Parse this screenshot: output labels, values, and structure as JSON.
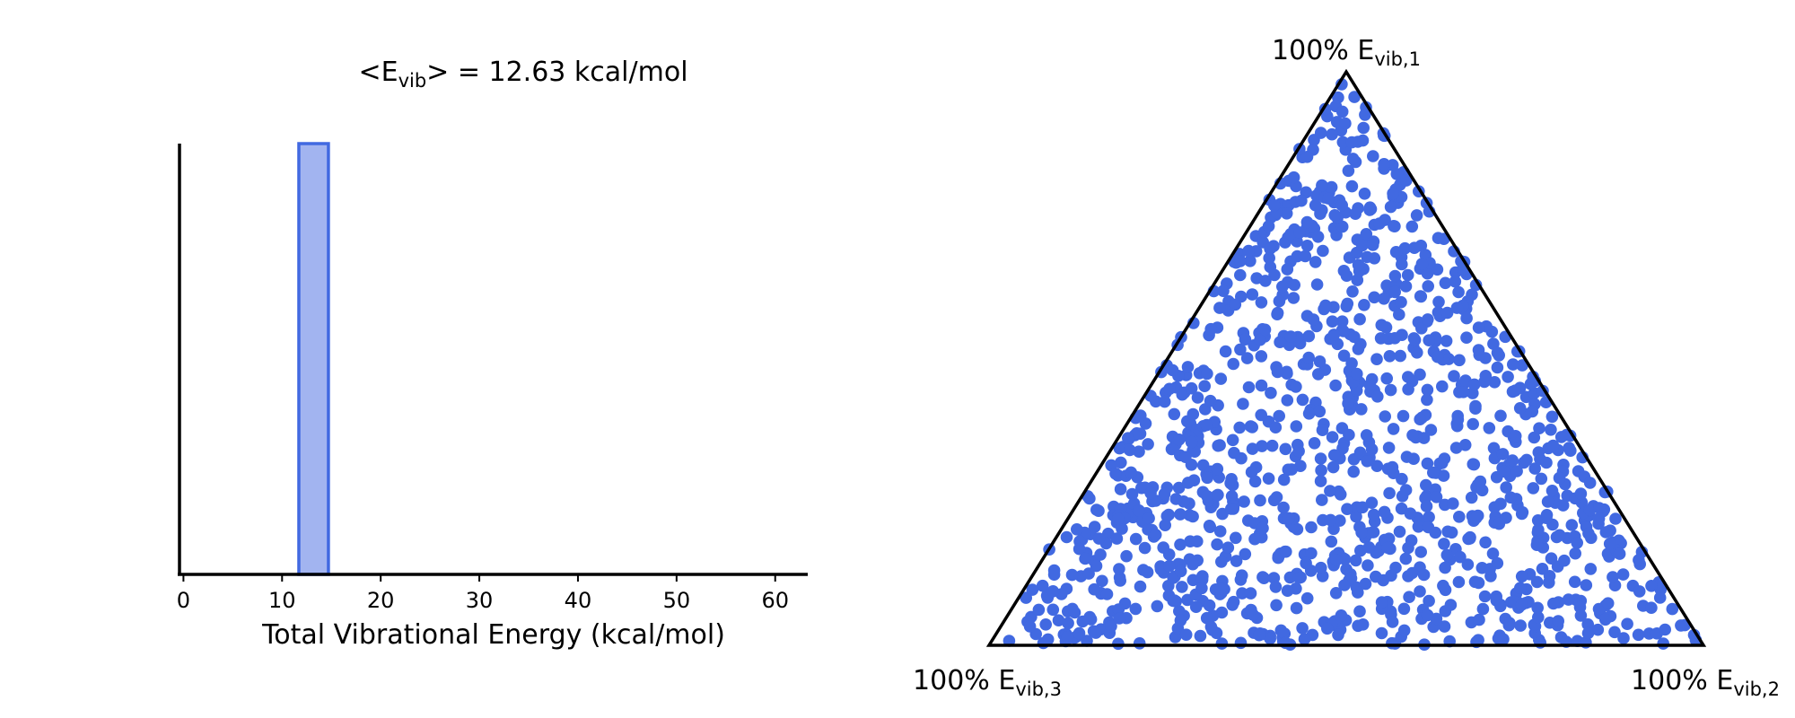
{
  "chart_data": [
    {
      "type": "bar",
      "title_main": "<E",
      "title_sub": "vib",
      "title_rest": "> = 12.63 kcal/mol",
      "xlabel": "Total Vibrational Energy (kcal/mol)",
      "xlim": [
        -0.4,
        63.3
      ],
      "xticks": [
        "0",
        "10",
        "20",
        "30",
        "40",
        "50",
        "60"
      ],
      "xtick_values": [
        0,
        10,
        20,
        30,
        40,
        50,
        60
      ],
      "bins": [
        {
          "x0": 11.7,
          "x1": 14.7,
          "value": 1.0
        }
      ],
      "ylim": [
        0,
        1.0
      ],
      "grid": false,
      "colors": {
        "bar_fill": "#a2b4f0",
        "bar_edge": "#4169e1",
        "axis": "#000000"
      }
    },
    {
      "type": "scatter",
      "subtype": "ternary",
      "marker_color": "#4169e1",
      "vertices": {
        "top": {
          "main": "100% E",
          "sub": "vib,1"
        },
        "right": {
          "main": "100% E",
          "sub": "vib,2"
        },
        "left": {
          "main": "100% E",
          "sub": "vib,3"
        }
      },
      "n_points": 1200
    }
  ]
}
